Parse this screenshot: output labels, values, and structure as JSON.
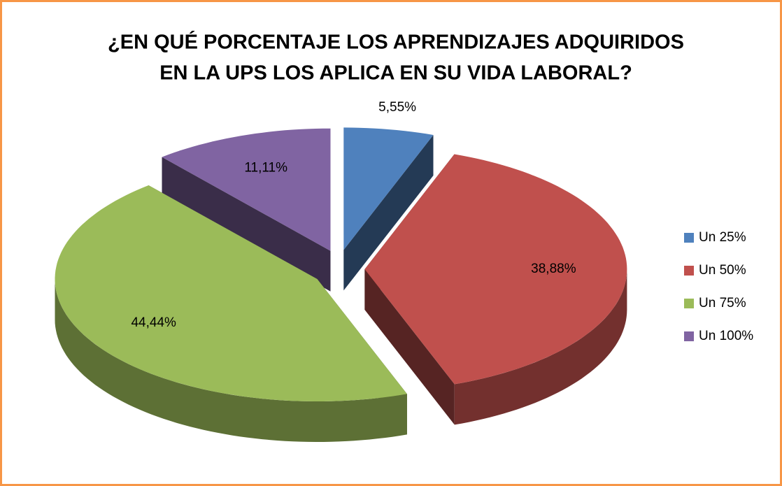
{
  "chart_data": {
    "type": "pie",
    "title": [
      "¿EN QUÉ PORCENTAJE LOS APRENDIZAJES ADQUIRIDOS",
      "EN LA UPS LOS APLICA EN SU VIDA LABORAL?"
    ],
    "categories": [
      "Un 25%",
      "Un 50%",
      "Un 75%",
      "Un 100%"
    ],
    "values": [
      5.55,
      38.88,
      44.44,
      11.11
    ],
    "value_labels": [
      "5,55%",
      "38,88%",
      "44,44%",
      "11,11%"
    ],
    "colors": [
      "#4f81bd",
      "#c0504d",
      "#9bbb59",
      "#8064a2"
    ],
    "legend": "right"
  }
}
